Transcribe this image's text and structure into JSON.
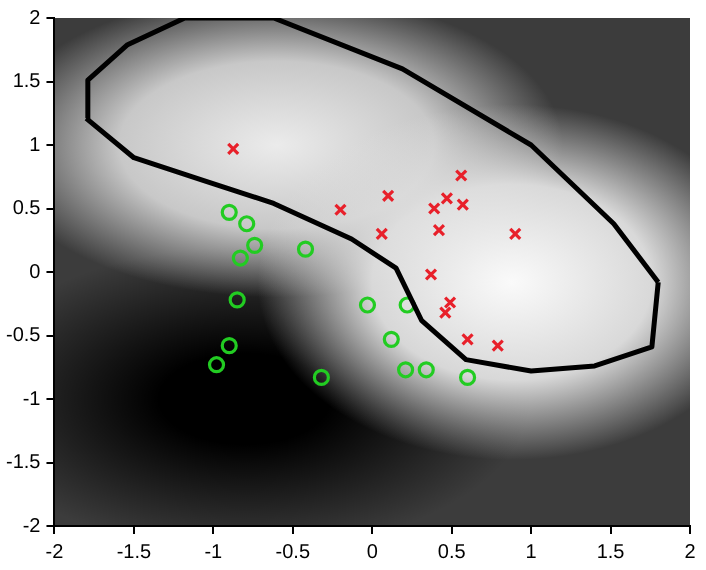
{
  "chart_data": {
    "type": "scatter",
    "xlim": [
      -2,
      2
    ],
    "ylim": [
      -2,
      2
    ],
    "xticks": [
      -2,
      -1.5,
      -1,
      -0.5,
      0,
      0.5,
      1,
      1.5,
      2
    ],
    "yticks": [
      -2,
      -1.5,
      -1,
      -0.5,
      0,
      0.5,
      1,
      1.5,
      2
    ],
    "grid": false,
    "legend": false,
    "series": [
      {
        "type": "line",
        "color": "#000000",
        "marker": "none",
        "x": [
          -1.8,
          -1.79,
          -1.54,
          -1.18,
          -0.62,
          0.19,
          1.0,
          1.52,
          1.8
        ],
        "values": [
          1.21,
          1.51,
          1.79,
          2.0,
          2.0,
          1.6,
          1.0,
          0.38,
          -0.08
        ]
      },
      {
        "type": "line",
        "color": "#000000",
        "marker": "none",
        "x": [
          -1.8,
          -1.5,
          -1.06,
          -0.62,
          -0.13,
          0.15,
          0.31,
          0.59,
          1.0,
          1.4,
          1.76,
          1.8
        ],
        "values": [
          1.21,
          0.9,
          0.72,
          0.54,
          0.26,
          0.03,
          -0.38,
          -0.69,
          -0.78,
          -0.74,
          -0.59,
          -0.08
        ]
      },
      {
        "color": "#e8202a",
        "marker": "cross",
        "x": [
          -0.875,
          -0.2,
          0.1,
          0.06,
          0.39,
          0.47,
          0.56,
          0.57,
          0.42,
          0.9,
          0.37,
          0.49,
          0.46,
          0.6,
          0.79
        ],
        "values": [
          0.97,
          0.49,
          0.6,
          0.3,
          0.5,
          0.58,
          0.76,
          0.53,
          0.33,
          0.3,
          -0.02,
          -0.24,
          -0.32,
          -0.53,
          -0.58
        ]
      },
      {
        "color": "#22cc22",
        "marker": "circle",
        "x": [
          -0.9,
          -0.79,
          -0.74,
          -0.83,
          -0.42,
          -0.85,
          -0.9,
          -0.98,
          -0.32,
          -0.03,
          0.22,
          0.12,
          0.21,
          0.34,
          0.6
        ],
        "values": [
          0.47,
          0.38,
          0.21,
          0.11,
          0.18,
          -0.22,
          -0.58,
          -0.73,
          -0.83,
          -0.26,
          -0.26,
          -0.53,
          -0.77,
          -0.77,
          -0.83
        ]
      }
    ]
  }
}
